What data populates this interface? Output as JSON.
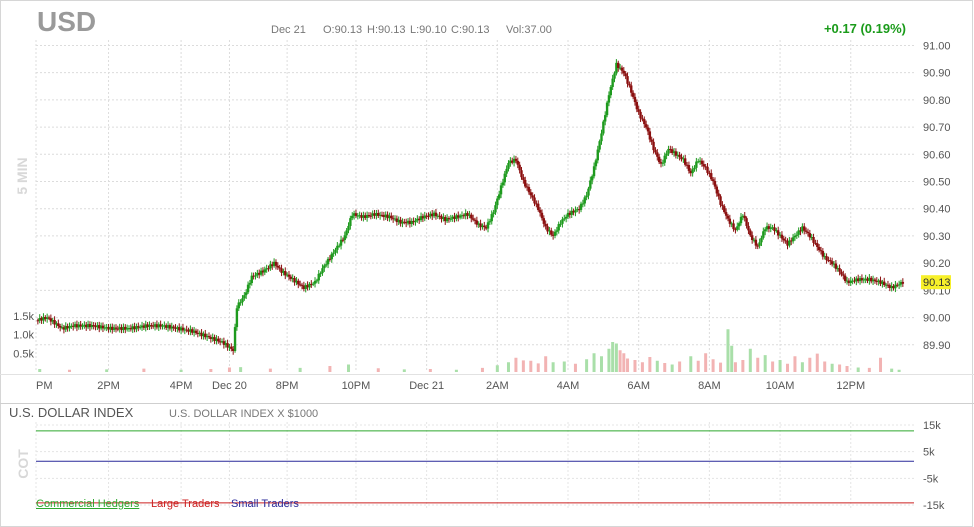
{
  "header": {
    "symbol": "USD",
    "date": "Dec 21",
    "open": "O:90.13",
    "high": "H:90.13",
    "low": "L:90.10",
    "close": "C:90.13",
    "volume": "Vol:37.00",
    "change": "+0.17 (0.19%)"
  },
  "side_label": "5 MIN",
  "cot_side_label": "COT",
  "chart_data": [
    {
      "type": "candlestick",
      "title": "USD",
      "interval": "5 MIN",
      "ylim": [
        89.8,
        91.02
      ],
      "y_ticks": [
        "91.00",
        "90.90",
        "90.80",
        "90.70",
        "90.60",
        "90.50",
        "90.40",
        "90.30",
        "90.20",
        "90.10",
        "90.00",
        "89.90"
      ],
      "x_ticks": [
        "PM",
        "2PM",
        "4PM",
        "Dec 20",
        "8PM",
        "10PM",
        "Dec 21",
        "2AM",
        "4AM",
        "6AM",
        "8AM",
        "10AM",
        "12PM"
      ],
      "last_price": "90.13",
      "price_path": [
        {
          "t": 0,
          "v": 89.99
        },
        {
          "t": 3,
          "v": 90.0
        },
        {
          "t": 7,
          "v": 89.96
        },
        {
          "t": 10,
          "v": 89.97
        },
        {
          "t": 15,
          "v": 89.97
        },
        {
          "t": 20,
          "v": 89.96
        },
        {
          "t": 25,
          "v": 89.96
        },
        {
          "t": 30,
          "v": 89.97
        },
        {
          "t": 34,
          "v": 89.97
        },
        {
          "t": 38,
          "v": 89.96
        },
        {
          "t": 42,
          "v": 89.95
        },
        {
          "t": 46,
          "v": 89.93
        },
        {
          "t": 50,
          "v": 89.91
        },
        {
          "t": 53,
          "v": 89.88
        },
        {
          "t": 54,
          "v": 90.04
        },
        {
          "t": 56,
          "v": 90.08
        },
        {
          "t": 58,
          "v": 90.15
        },
        {
          "t": 61,
          "v": 90.17
        },
        {
          "t": 64,
          "v": 90.2
        },
        {
          "t": 66,
          "v": 90.17
        },
        {
          "t": 69,
          "v": 90.14
        },
        {
          "t": 72,
          "v": 90.11
        },
        {
          "t": 75,
          "v": 90.13
        },
        {
          "t": 77,
          "v": 90.18
        },
        {
          "t": 80,
          "v": 90.24
        },
        {
          "t": 83,
          "v": 90.3
        },
        {
          "t": 85,
          "v": 90.38
        },
        {
          "t": 88,
          "v": 90.37
        },
        {
          "t": 91,
          "v": 90.38
        },
        {
          "t": 95,
          "v": 90.37
        },
        {
          "t": 98,
          "v": 90.35
        },
        {
          "t": 101,
          "v": 90.35
        },
        {
          "t": 104,
          "v": 90.37
        },
        {
          "t": 107,
          "v": 90.38
        },
        {
          "t": 110,
          "v": 90.36
        },
        {
          "t": 113,
          "v": 90.37
        },
        {
          "t": 116,
          "v": 90.38
        },
        {
          "t": 119,
          "v": 90.34
        },
        {
          "t": 121,
          "v": 90.33
        },
        {
          "t": 123,
          "v": 90.39
        },
        {
          "t": 125,
          "v": 90.48
        },
        {
          "t": 127,
          "v": 90.57
        },
        {
          "t": 129,
          "v": 90.58
        },
        {
          "t": 131,
          "v": 90.5
        },
        {
          "t": 133,
          "v": 90.45
        },
        {
          "t": 135,
          "v": 90.4
        },
        {
          "t": 137,
          "v": 90.33
        },
        {
          "t": 139,
          "v": 90.3
        },
        {
          "t": 141,
          "v": 90.35
        },
        {
          "t": 143,
          "v": 90.38
        },
        {
          "t": 146,
          "v": 90.4
        },
        {
          "t": 148,
          "v": 90.45
        },
        {
          "t": 150,
          "v": 90.55
        },
        {
          "t": 152,
          "v": 90.68
        },
        {
          "t": 154,
          "v": 90.82
        },
        {
          "t": 156,
          "v": 90.93
        },
        {
          "t": 158,
          "v": 90.9
        },
        {
          "t": 160,
          "v": 90.83
        },
        {
          "t": 162,
          "v": 90.75
        },
        {
          "t": 164,
          "v": 90.7
        },
        {
          "t": 166,
          "v": 90.62
        },
        {
          "t": 168,
          "v": 90.56
        },
        {
          "t": 170,
          "v": 90.62
        },
        {
          "t": 172,
          "v": 90.6
        },
        {
          "t": 174,
          "v": 90.58
        },
        {
          "t": 176,
          "v": 90.53
        },
        {
          "t": 178,
          "v": 90.58
        },
        {
          "t": 180,
          "v": 90.55
        },
        {
          "t": 182,
          "v": 90.5
        },
        {
          "t": 184,
          "v": 90.42
        },
        {
          "t": 186,
          "v": 90.36
        },
        {
          "t": 188,
          "v": 90.32
        },
        {
          "t": 190,
          "v": 90.38
        },
        {
          "t": 192,
          "v": 90.3
        },
        {
          "t": 194,
          "v": 90.26
        },
        {
          "t": 196,
          "v": 90.33
        },
        {
          "t": 198,
          "v": 90.33
        },
        {
          "t": 200,
          "v": 90.3
        },
        {
          "t": 202,
          "v": 90.27
        },
        {
          "t": 204,
          "v": 90.3
        },
        {
          "t": 206,
          "v": 90.33
        },
        {
          "t": 208,
          "v": 90.3
        },
        {
          "t": 210,
          "v": 90.26
        },
        {
          "t": 212,
          "v": 90.22
        },
        {
          "t": 214,
          "v": 90.2
        },
        {
          "t": 216,
          "v": 90.17
        },
        {
          "t": 218,
          "v": 90.13
        },
        {
          "t": 221,
          "v": 90.14
        },
        {
          "t": 224,
          "v": 90.14
        },
        {
          "t": 227,
          "v": 90.13
        },
        {
          "t": 230,
          "v": 90.11
        },
        {
          "t": 233,
          "v": 90.13
        }
      ],
      "volume": {
        "y_ticks": [
          "1.5k",
          "1.0k",
          "0.5k"
        ],
        "ylim": [
          0,
          1600
        ],
        "bars": [
          {
            "t": 1,
            "v": 80,
            "dir": "up"
          },
          {
            "t": 9,
            "v": 60,
            "dir": "down"
          },
          {
            "t": 19,
            "v": 70,
            "dir": "up"
          },
          {
            "t": 29,
            "v": 90,
            "dir": "down"
          },
          {
            "t": 39,
            "v": 60,
            "dir": "up"
          },
          {
            "t": 47,
            "v": 80,
            "dir": "down"
          },
          {
            "t": 52,
            "v": 120,
            "dir": "down"
          },
          {
            "t": 55,
            "v": 130,
            "dir": "up"
          },
          {
            "t": 63,
            "v": 90,
            "dir": "down"
          },
          {
            "t": 71,
            "v": 110,
            "dir": "up"
          },
          {
            "t": 79,
            "v": 160,
            "dir": "down"
          },
          {
            "t": 84,
            "v": 200,
            "dir": "up"
          },
          {
            "t": 92,
            "v": 100,
            "dir": "down"
          },
          {
            "t": 99,
            "v": 70,
            "dir": "up"
          },
          {
            "t": 106,
            "v": 80,
            "dir": "down"
          },
          {
            "t": 113,
            "v": 60,
            "dir": "up"
          },
          {
            "t": 120,
            "v": 110,
            "dir": "down"
          },
          {
            "t": 124,
            "v": 180,
            "dir": "up"
          },
          {
            "t": 127,
            "v": 260,
            "dir": "up"
          },
          {
            "t": 129,
            "v": 380,
            "dir": "down"
          },
          {
            "t": 131,
            "v": 310,
            "dir": "down"
          },
          {
            "t": 133,
            "v": 300,
            "dir": "down"
          },
          {
            "t": 135,
            "v": 230,
            "dir": "down"
          },
          {
            "t": 137,
            "v": 420,
            "dir": "down"
          },
          {
            "t": 139,
            "v": 260,
            "dir": "up"
          },
          {
            "t": 142,
            "v": 280,
            "dir": "up"
          },
          {
            "t": 145,
            "v": 220,
            "dir": "down"
          },
          {
            "t": 148,
            "v": 340,
            "dir": "up"
          },
          {
            "t": 150,
            "v": 500,
            "dir": "up"
          },
          {
            "t": 152,
            "v": 420,
            "dir": "up"
          },
          {
            "t": 154,
            "v": 620,
            "dir": "up"
          },
          {
            "t": 155,
            "v": 800,
            "dir": "up"
          },
          {
            "t": 156,
            "v": 760,
            "dir": "up"
          },
          {
            "t": 157,
            "v": 580,
            "dir": "down"
          },
          {
            "t": 158,
            "v": 500,
            "dir": "down"
          },
          {
            "t": 159,
            "v": 360,
            "dir": "down"
          },
          {
            "t": 161,
            "v": 320,
            "dir": "down"
          },
          {
            "t": 163,
            "v": 260,
            "dir": "down"
          },
          {
            "t": 165,
            "v": 400,
            "dir": "down"
          },
          {
            "t": 167,
            "v": 300,
            "dir": "up"
          },
          {
            "t": 169,
            "v": 240,
            "dir": "down"
          },
          {
            "t": 171,
            "v": 200,
            "dir": "up"
          },
          {
            "t": 173,
            "v": 280,
            "dir": "down"
          },
          {
            "t": 176,
            "v": 420,
            "dir": "up"
          },
          {
            "t": 178,
            "v": 300,
            "dir": "down"
          },
          {
            "t": 180,
            "v": 500,
            "dir": "down"
          },
          {
            "t": 182,
            "v": 340,
            "dir": "down"
          },
          {
            "t": 184,
            "v": 250,
            "dir": "down"
          },
          {
            "t": 186,
            "v": 1140,
            "dir": "up"
          },
          {
            "t": 187,
            "v": 700,
            "dir": "up"
          },
          {
            "t": 188,
            "v": 260,
            "dir": "down"
          },
          {
            "t": 190,
            "v": 320,
            "dir": "down"
          },
          {
            "t": 192,
            "v": 620,
            "dir": "up"
          },
          {
            "t": 194,
            "v": 380,
            "dir": "down"
          },
          {
            "t": 196,
            "v": 450,
            "dir": "up"
          },
          {
            "t": 198,
            "v": 280,
            "dir": "down"
          },
          {
            "t": 200,
            "v": 320,
            "dir": "up"
          },
          {
            "t": 202,
            "v": 220,
            "dir": "down"
          },
          {
            "t": 204,
            "v": 420,
            "dir": "down"
          },
          {
            "t": 206,
            "v": 260,
            "dir": "up"
          },
          {
            "t": 208,
            "v": 380,
            "dir": "down"
          },
          {
            "t": 210,
            "v": 490,
            "dir": "down"
          },
          {
            "t": 212,
            "v": 280,
            "dir": "down"
          },
          {
            "t": 214,
            "v": 220,
            "dir": "up"
          },
          {
            "t": 216,
            "v": 200,
            "dir": "down"
          },
          {
            "t": 218,
            "v": 160,
            "dir": "down"
          },
          {
            "t": 221,
            "v": 120,
            "dir": "up"
          },
          {
            "t": 224,
            "v": 110,
            "dir": "down"
          },
          {
            "t": 227,
            "v": 380,
            "dir": "down"
          },
          {
            "t": 230,
            "v": 90,
            "dir": "up"
          },
          {
            "t": 232,
            "v": 60,
            "dir": "up"
          }
        ]
      }
    },
    {
      "type": "line",
      "title": "U.S. DOLLAR INDEX",
      "subtitle": "U.S. DOLLAR INDEX X $1000",
      "y_ticks": [
        "15k",
        "5k",
        "-5k",
        "-15k"
      ],
      "ylim": [
        -15000,
        15000
      ],
      "series": [
        {
          "name": "Commercial Hedgers",
          "color": "#2ea82e",
          "value": 12800
        },
        {
          "name": "Large Traders",
          "color": "#cc2222",
          "value": -14200
        },
        {
          "name": "Small Traders",
          "color": "#2a2a9a",
          "value": 1400
        }
      ]
    }
  ]
}
